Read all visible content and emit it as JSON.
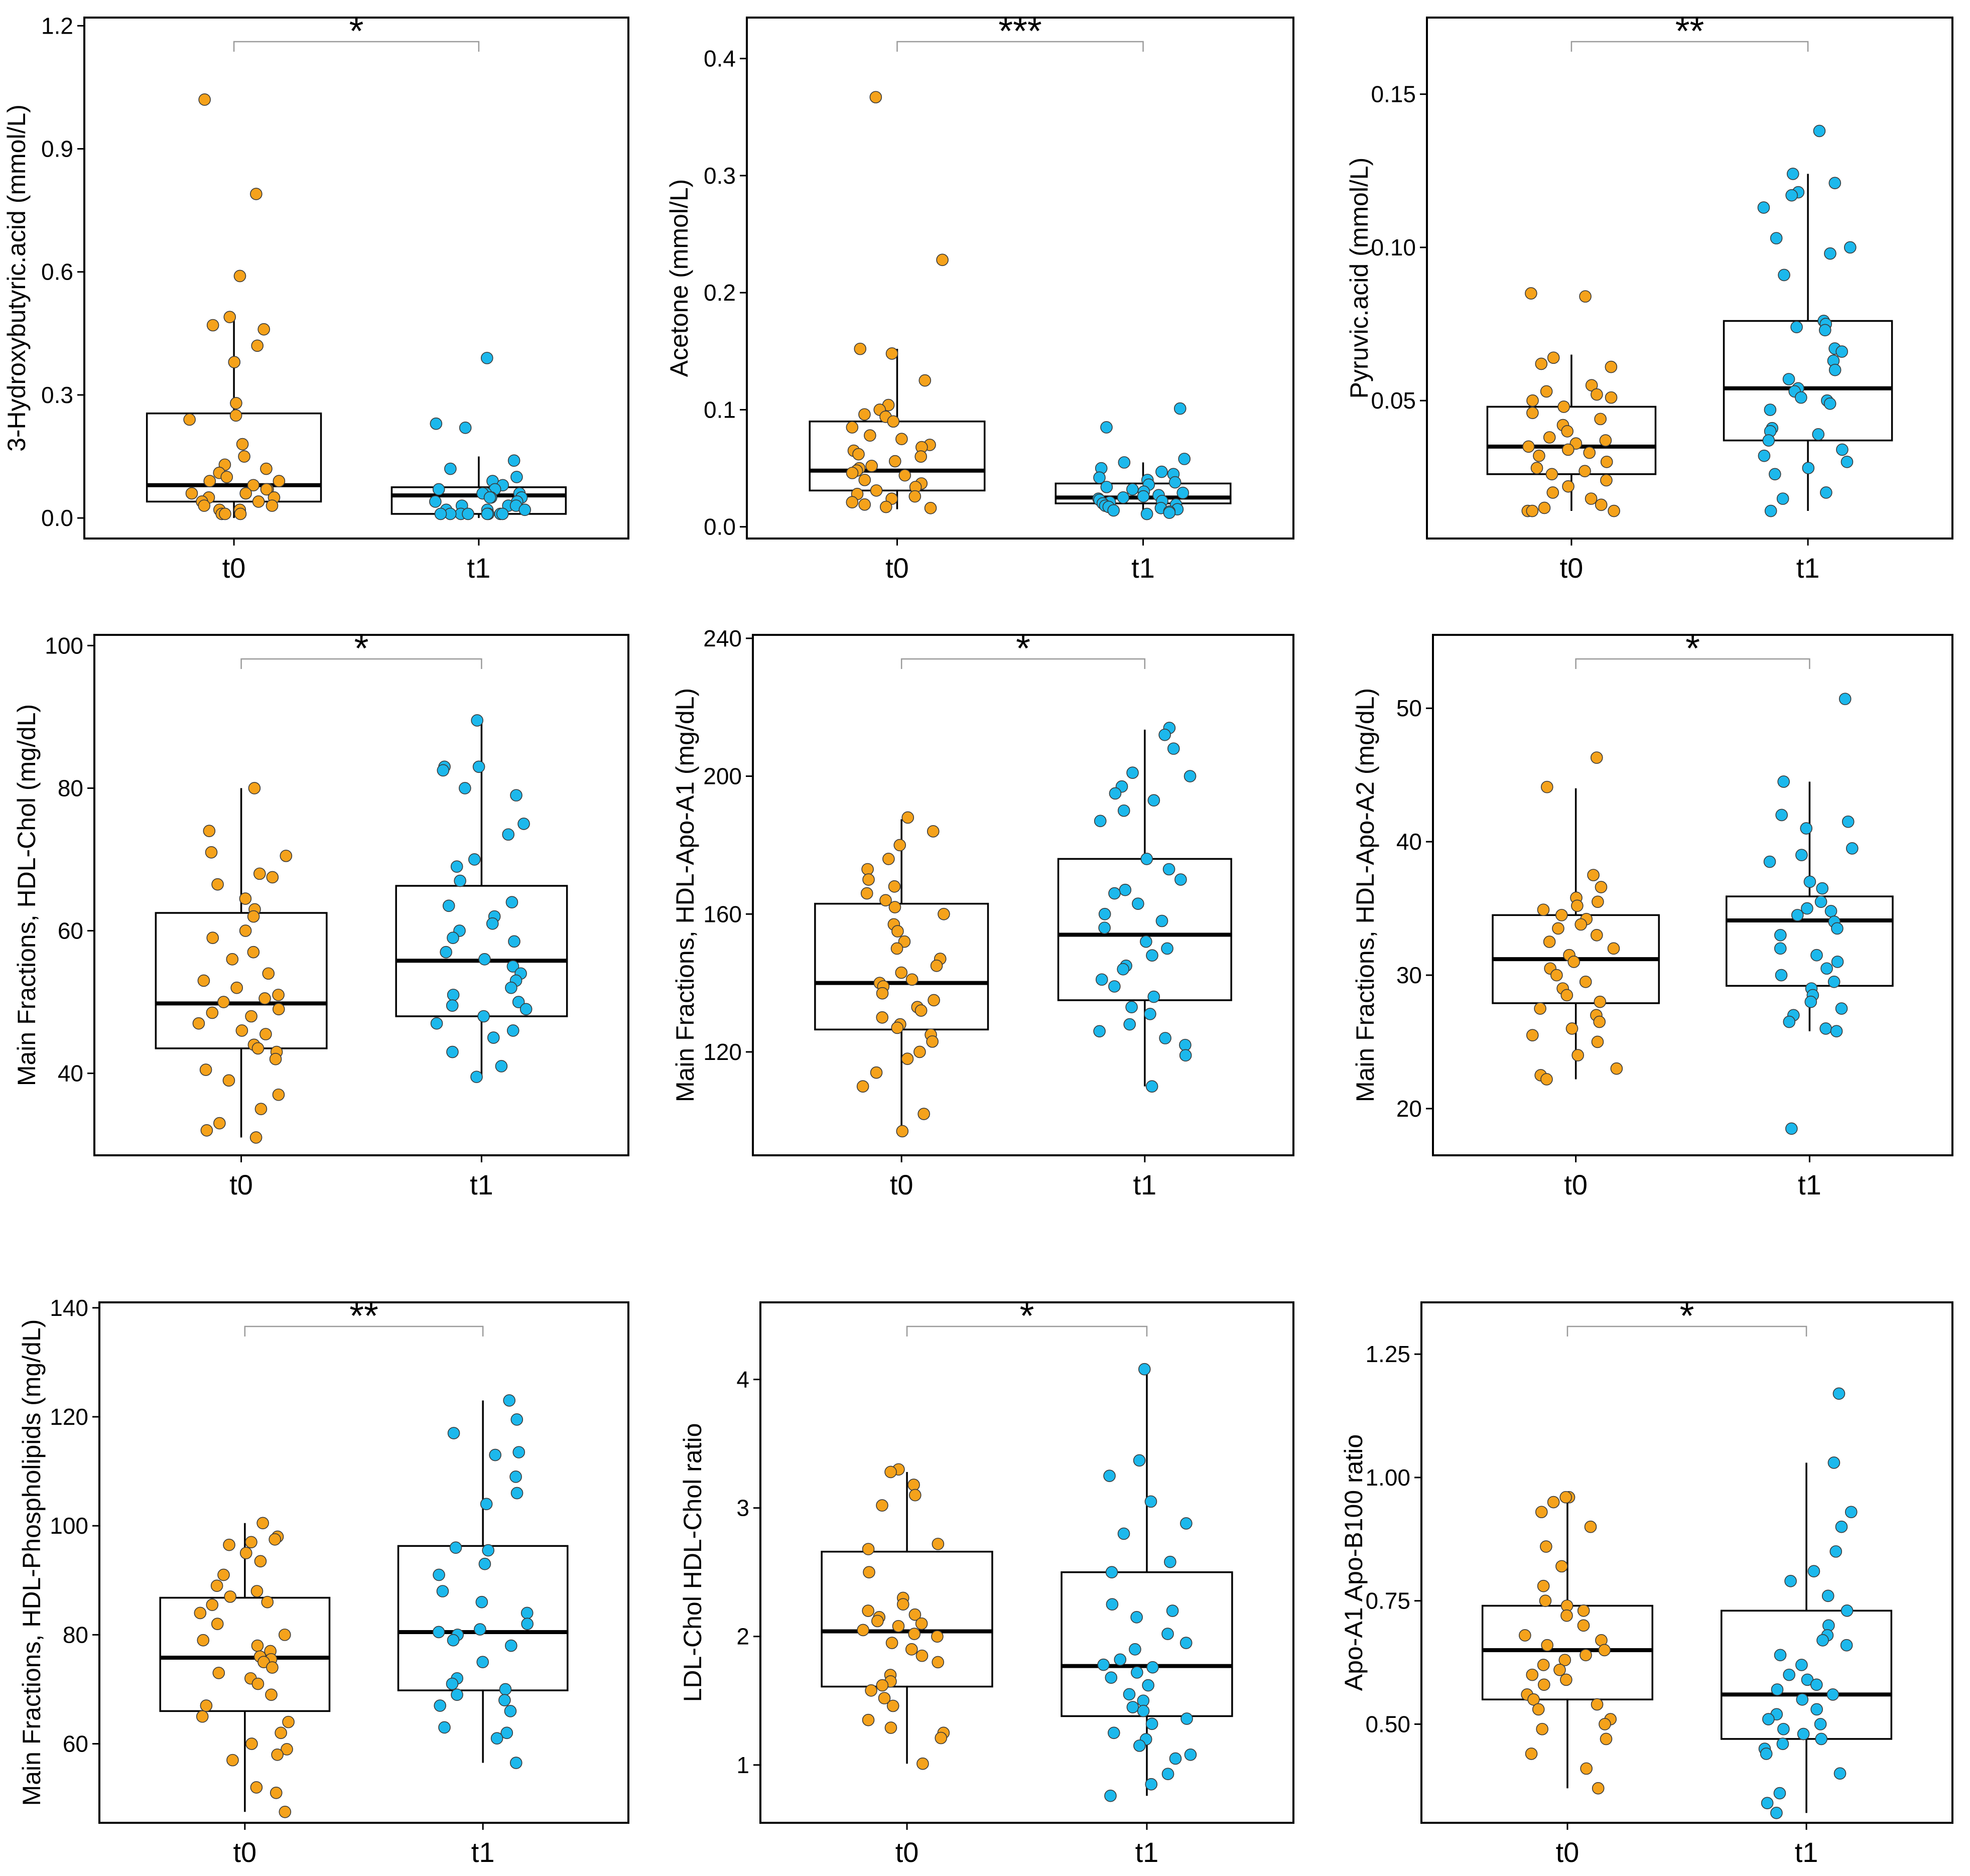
{
  "chart_data": [
    {
      "type": "box",
      "ylabel": "3-Hydroxybutyric.acid  (mmol/L)",
      "categories": [
        "t0",
        "t1"
      ],
      "significance": "*",
      "ylim": [
        -0.05,
        1.22
      ],
      "yticks": [
        0.0,
        0.3,
        0.6,
        0.9,
        1.2
      ],
      "ytick_labels": [
        "0.0",
        "0.3",
        "0.6",
        "0.9",
        "1.2"
      ],
      "boxes": [
        {
          "q1": 0.04,
          "median": 0.08,
          "q3": 0.255,
          "whisker_low": 0.0,
          "whisker_high": 0.49
        },
        {
          "q1": 0.01,
          "median": 0.055,
          "q3": 0.075,
          "whisker_low": 0.0,
          "whisker_high": 0.15
        }
      ],
      "points": [
        [
          1.02,
          0.79,
          0.59,
          0.49,
          0.47,
          0.46,
          0.42,
          0.38,
          0.28,
          0.25,
          0.24,
          0.18,
          0.15,
          0.13,
          0.12,
          0.11,
          0.1,
          0.09,
          0.09,
          0.08,
          0.07,
          0.07,
          0.06,
          0.06,
          0.05,
          0.05,
          0.04,
          0.04,
          0.03,
          0.03,
          0.02,
          0.02,
          0.01,
          0.01,
          0.01
        ],
        [
          0.39,
          0.23,
          0.22,
          0.14,
          0.12,
          0.1,
          0.09,
          0.08,
          0.07,
          0.07,
          0.06,
          0.06,
          0.06,
          0.05,
          0.05,
          0.05,
          0.04,
          0.04,
          0.03,
          0.03,
          0.03,
          0.02,
          0.02,
          0.02,
          0.01,
          0.01,
          0.01,
          0.01,
          0.01,
          0.01,
          0.01,
          0.01
        ]
      ]
    },
    {
      "type": "box",
      "ylabel": "Acetone  (mmol/L)",
      "categories": [
        "t0",
        "t1"
      ],
      "significance": "***",
      "ylim": [
        -0.01,
        0.435
      ],
      "yticks": [
        0.0,
        0.1,
        0.2,
        0.3,
        0.4
      ],
      "ytick_labels": [
        "0.0",
        "0.1",
        "0.2",
        "0.3",
        "0.4"
      ],
      "boxes": [
        {
          "q1": 0.031,
          "median": 0.048,
          "q3": 0.09,
          "whisker_low": 0.015,
          "whisker_high": 0.152
        },
        {
          "q1": 0.02,
          "median": 0.025,
          "q3": 0.037,
          "whisker_low": 0.01,
          "whisker_high": 0.055
        }
      ],
      "points": [
        [
          0.367,
          0.228,
          0.152,
          0.148,
          0.125,
          0.104,
          0.1,
          0.096,
          0.094,
          0.09,
          0.085,
          0.078,
          0.075,
          0.07,
          0.068,
          0.065,
          0.062,
          0.06,
          0.056,
          0.052,
          0.05,
          0.048,
          0.046,
          0.044,
          0.04,
          0.037,
          0.034,
          0.031,
          0.028,
          0.026,
          0.024,
          0.021,
          0.019,
          0.017,
          0.016
        ],
        [
          0.101,
          0.085,
          0.058,
          0.055,
          0.05,
          0.047,
          0.045,
          0.042,
          0.04,
          0.038,
          0.036,
          0.034,
          0.032,
          0.03,
          0.029,
          0.027,
          0.026,
          0.025,
          0.024,
          0.023,
          0.022,
          0.021,
          0.02,
          0.019,
          0.018,
          0.017,
          0.016,
          0.015,
          0.014,
          0.013,
          0.012,
          0.011
        ]
      ]
    },
    {
      "type": "box",
      "ylabel": "Pyruvic.acid  (mmol/L)",
      "categories": [
        "t0",
        "t1"
      ],
      "significance": "**",
      "ylim": [
        0.005,
        0.175
      ],
      "yticks": [
        0.05,
        0.1,
        0.15
      ],
      "ytick_labels": [
        "0.05",
        "0.10",
        "0.15"
      ],
      "boxes": [
        {
          "q1": 0.026,
          "median": 0.035,
          "q3": 0.048,
          "whisker_low": 0.014,
          "whisker_high": 0.065
        },
        {
          "q1": 0.037,
          "median": 0.054,
          "q3": 0.076,
          "whisker_low": 0.014,
          "whisker_high": 0.124
        }
      ],
      "points": [
        [
          0.085,
          0.084,
          0.064,
          0.062,
          0.061,
          0.055,
          0.053,
          0.052,
          0.051,
          0.05,
          0.048,
          0.046,
          0.044,
          0.042,
          0.04,
          0.038,
          0.037,
          0.036,
          0.035,
          0.034,
          0.033,
          0.032,
          0.03,
          0.028,
          0.027,
          0.026,
          0.024,
          0.022,
          0.02,
          0.018,
          0.016,
          0.015,
          0.014,
          0.014,
          0.014
        ],
        [
          0.138,
          0.124,
          0.121,
          0.118,
          0.117,
          0.113,
          0.103,
          0.1,
          0.098,
          0.091,
          0.076,
          0.075,
          0.074,
          0.073,
          0.067,
          0.066,
          0.063,
          0.06,
          0.057,
          0.054,
          0.053,
          0.051,
          0.05,
          0.049,
          0.047,
          0.041,
          0.04,
          0.039,
          0.037,
          0.034,
          0.032,
          0.03,
          0.028,
          0.026,
          0.02,
          0.018,
          0.014
        ]
      ]
    },
    {
      "type": "box",
      "ylabel": "Main Fractions, HDL-Chol (mg/dL)",
      "categories": [
        "t0",
        "t1"
      ],
      "significance": "*",
      "ylim": [
        28.5,
        101.5
      ],
      "yticks": [
        40,
        60,
        80,
        100
      ],
      "ytick_labels": [
        "40",
        "60",
        "80",
        "100"
      ],
      "boxes": [
        {
          "q1": 43.5,
          "median": 49.8,
          "q3": 62.5,
          "whisker_low": 31.0,
          "whisker_high": 80.0
        },
        {
          "q1": 48.0,
          "median": 55.8,
          "q3": 66.3,
          "whisker_low": 39.5,
          "whisker_high": 89.5
        }
      ],
      "points": [
        [
          80.0,
          74.0,
          71.0,
          70.5,
          68.0,
          67.5,
          66.5,
          64.5,
          63.0,
          62.0,
          60.0,
          59.0,
          57.0,
          56.0,
          54.0,
          53.0,
          52.0,
          51.0,
          50.5,
          50.0,
          49.0,
          48.5,
          48.0,
          47.0,
          46.0,
          45.5,
          44.0,
          43.5,
          43.0,
          42.0,
          40.5,
          39.0,
          37.0,
          35.0,
          33.0,
          32.0,
          31.0
        ],
        [
          89.5,
          83.0,
          83.0,
          82.5,
          80.0,
          79.0,
          75.0,
          73.5,
          70.0,
          69.0,
          67.0,
          64.0,
          63.5,
          62.0,
          61.0,
          60.0,
          59.0,
          58.5,
          57.0,
          56.0,
          55.0,
          54.0,
          53.0,
          52.0,
          51.0,
          50.0,
          49.5,
          49.0,
          48.0,
          47.0,
          46.0,
          45.0,
          43.0,
          41.0,
          39.5
        ]
      ]
    },
    {
      "type": "box",
      "ylabel": "Main Fractions, HDL-Apo-A1 (mg/dL)",
      "categories": [
        "t0",
        "t1"
      ],
      "significance": "*",
      "ylim": [
        90,
        241
      ],
      "yticks": [
        120,
        160,
        200,
        240
      ],
      "ytick_labels": [
        "120",
        "160",
        "200",
        "240"
      ],
      "boxes": [
        {
          "q1": 126.5,
          "median": 140.0,
          "q3": 163.0,
          "whisker_low": 97.0,
          "whisker_high": 187.5
        },
        {
          "q1": 135.0,
          "median": 154.0,
          "q3": 176.0,
          "whisker_low": 110.0,
          "whisker_high": 213.5
        }
      ],
      "points": [
        [
          188,
          184,
          180,
          176,
          173,
          170,
          168,
          166,
          164,
          162,
          160,
          157,
          155,
          152,
          150,
          147,
          145,
          143,
          141,
          140,
          139,
          137,
          135,
          133,
          132,
          130,
          128,
          127,
          125,
          123,
          120,
          118,
          114,
          110,
          102,
          97
        ],
        [
          214,
          212,
          208,
          201,
          200,
          197,
          195,
          193,
          190,
          187,
          176,
          173,
          170,
          167,
          166,
          163,
          160,
          158,
          156,
          152,
          150,
          148,
          145,
          144,
          141,
          139,
          136,
          133,
          131,
          128,
          126,
          124,
          122,
          119,
          110
        ]
      ]
    },
    {
      "type": "box",
      "ylabel": "Main Fractions, HDL-Apo-A2 (mg/dL)",
      "categories": [
        "t0",
        "t1"
      ],
      "significance": "*",
      "ylim": [
        16.5,
        55.5
      ],
      "yticks": [
        20,
        30,
        40,
        50
      ],
      "ytick_labels": [
        "20",
        "30",
        "40",
        "50"
      ],
      "boxes": [
        {
          "q1": 27.9,
          "median": 31.2,
          "q3": 34.5,
          "whisker_low": 22.2,
          "whisker_high": 44.0
        },
        {
          "q1": 29.2,
          "median": 34.1,
          "q3": 35.9,
          "whisker_low": 25.8,
          "whisker_high": 44.5
        }
      ],
      "points": [
        [
          46.3,
          44.1,
          37.5,
          36.6,
          35.8,
          35.5,
          35.2,
          34.9,
          34.5,
          34.2,
          33.8,
          33.5,
          33.0,
          32.5,
          32.0,
          31.5,
          31.0,
          30.5,
          30.0,
          29.5,
          29.0,
          28.5,
          28.0,
          27.5,
          27.0,
          26.5,
          26.0,
          25.5,
          25.0,
          24.0,
          23.0,
          22.5,
          22.2
        ],
        [
          50.7,
          44.5,
          42.0,
          41.5,
          41.0,
          39.5,
          39.0,
          38.5,
          37.0,
          36.5,
          35.5,
          35.0,
          34.8,
          34.5,
          34.0,
          33.5,
          33.0,
          32.0,
          31.5,
          31.0,
          30.5,
          30.0,
          29.5,
          29.0,
          28.5,
          28.0,
          27.5,
          27.0,
          26.5,
          26.0,
          25.8,
          18.5
        ]
      ]
    },
    {
      "type": "box",
      "ylabel": "Main Fractions, HDL-Phospholipids (mg/dL)",
      "categories": [
        "t0",
        "t1"
      ],
      "significance": "**",
      "ylim": [
        45.5,
        141
      ],
      "yticks": [
        60,
        80,
        100,
        120,
        140
      ],
      "ytick_labels": [
        "60",
        "80",
        "100",
        "120",
        "140"
      ],
      "boxes": [
        {
          "q1": 66.0,
          "median": 75.8,
          "q3": 86.8,
          "whisker_low": 47.5,
          "whisker_high": 100.5
        },
        {
          "q1": 69.8,
          "median": 80.5,
          "q3": 96.3,
          "whisker_low": 56.5,
          "whisker_high": 123.0
        }
      ],
      "points": [
        [
          100.5,
          98.0,
          97.5,
          97.0,
          96.5,
          95.0,
          93.5,
          91.0,
          89.0,
          88.0,
          87.0,
          86.0,
          85.5,
          84.0,
          82.0,
          80.0,
          79.0,
          78.0,
          77.0,
          76.0,
          75.5,
          75.0,
          74.0,
          73.0,
          72.0,
          71.0,
          69.0,
          67.0,
          65.0,
          64.0,
          62.0,
          60.0,
          59.0,
          58.0,
          57.0,
          52.0,
          51.0,
          47.5
        ],
        [
          123.0,
          119.5,
          117.0,
          113.5,
          113.0,
          109.0,
          106.0,
          104.0,
          96.0,
          95.5,
          93.0,
          91.0,
          88.0,
          86.0,
          84.0,
          82.0,
          81.0,
          80.5,
          80.0,
          79.0,
          78.0,
          75.0,
          72.0,
          71.0,
          70.0,
          69.0,
          68.0,
          67.0,
          66.0,
          63.0,
          62.0,
          61.0,
          56.5
        ]
      ]
    },
    {
      "type": "box",
      "ylabel": "LDL-Chol HDL-Chol ratio",
      "categories": [
        "t0",
        "t1"
      ],
      "significance": "*",
      "ylim": [
        0.55,
        4.6
      ],
      "yticks": [
        1,
        2,
        3,
        4
      ],
      "ytick_labels": [
        "1",
        "2",
        "3",
        "4"
      ],
      "boxes": [
        {
          "q1": 1.61,
          "median": 2.04,
          "q3": 2.66,
          "whisker_low": 1.01,
          "whisker_high": 3.28
        },
        {
          "q1": 1.38,
          "median": 1.77,
          "q3": 2.5,
          "whisker_low": 0.76,
          "whisker_high": 4.08
        }
      ],
      "points": [
        [
          3.3,
          3.28,
          3.18,
          3.1,
          3.02,
          2.72,
          2.68,
          2.5,
          2.3,
          2.25,
          2.2,
          2.17,
          2.15,
          2.12,
          2.1,
          2.08,
          2.05,
          2.02,
          2.0,
          1.95,
          1.9,
          1.85,
          1.8,
          1.7,
          1.65,
          1.62,
          1.58,
          1.52,
          1.46,
          1.35,
          1.29,
          1.25,
          1.21,
          1.01
        ],
        [
          4.08,
          3.37,
          3.25,
          3.05,
          2.88,
          2.8,
          2.58,
          2.5,
          2.25,
          2.2,
          2.15,
          2.02,
          1.95,
          1.9,
          1.82,
          1.78,
          1.76,
          1.72,
          1.68,
          1.62,
          1.55,
          1.5,
          1.45,
          1.42,
          1.36,
          1.32,
          1.25,
          1.2,
          1.15,
          1.08,
          1.05,
          0.93,
          0.85,
          0.76
        ]
      ]
    },
    {
      "type": "box",
      "ylabel": "Apo-A1 Apo-B100 ratio",
      "categories": [
        "t0",
        "t1"
      ],
      "significance": "*",
      "ylim": [
        0.3,
        1.355
      ],
      "yticks": [
        0.5,
        0.75,
        1.0,
        1.25
      ],
      "ytick_labels": [
        "0.50",
        "0.75",
        "1.00",
        "1.25"
      ],
      "boxes": [
        {
          "q1": 0.55,
          "median": 0.65,
          "q3": 0.74,
          "whisker_low": 0.37,
          "whisker_high": 0.96
        },
        {
          "q1": 0.47,
          "median": 0.56,
          "q3": 0.73,
          "whisker_low": 0.32,
          "whisker_high": 1.03
        }
      ],
      "points": [
        [
          0.96,
          0.96,
          0.95,
          0.93,
          0.9,
          0.86,
          0.82,
          0.78,
          0.75,
          0.74,
          0.73,
          0.72,
          0.7,
          0.68,
          0.67,
          0.66,
          0.65,
          0.64,
          0.63,
          0.62,
          0.61,
          0.6,
          0.59,
          0.58,
          0.56,
          0.55,
          0.54,
          0.53,
          0.51,
          0.5,
          0.49,
          0.47,
          0.44,
          0.41,
          0.37
        ],
        [
          1.17,
          1.03,
          0.93,
          0.9,
          0.85,
          0.81,
          0.79,
          0.76,
          0.73,
          0.7,
          0.68,
          0.67,
          0.66,
          0.64,
          0.62,
          0.6,
          0.59,
          0.58,
          0.57,
          0.56,
          0.55,
          0.53,
          0.52,
          0.51,
          0.5,
          0.49,
          0.48,
          0.47,
          0.46,
          0.45,
          0.44,
          0.4,
          0.36,
          0.34,
          0.32
        ]
      ]
    }
  ],
  "colors": {
    "t0": "#F5A21B",
    "t1": "#1CB8EC",
    "box_fill": "#FFFFFF",
    "outline": "#000000",
    "bracket": "#9A9A9A"
  }
}
